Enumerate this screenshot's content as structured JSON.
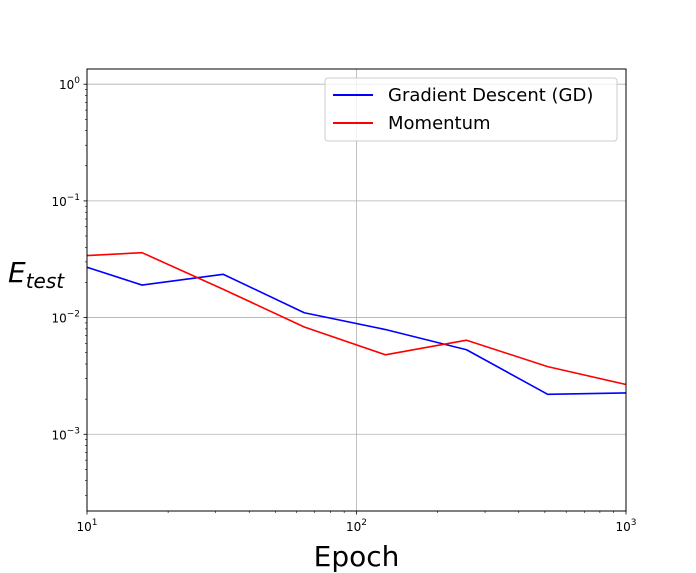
{
  "chart_data": {
    "type": "line",
    "title": "",
    "xlabel": "Epoch",
    "ylabel_base": "E",
    "ylabel_sub": "test",
    "xscale": "log",
    "yscale": "log",
    "xlim": [
      10,
      1000
    ],
    "ylim": [
      0.00022,
      1.35
    ],
    "grid": "major",
    "legend_position": "upper right",
    "x_ticks": [
      {
        "value": 10,
        "base": "10",
        "exp": "1"
      },
      {
        "value": 100,
        "base": "10",
        "exp": "2"
      },
      {
        "value": 1000,
        "base": "10",
        "exp": "3"
      }
    ],
    "y_ticks": [
      {
        "value": 0.001,
        "base": "10",
        "exp": "−3"
      },
      {
        "value": 0.01,
        "base": "10",
        "exp": "−2"
      },
      {
        "value": 0.1,
        "base": "10",
        "exp": "−1"
      },
      {
        "value": 1,
        "base": "10",
        "exp": "0"
      }
    ],
    "series": [
      {
        "name": "Gradient Descent (GD)",
        "color": "#0000ff",
        "x": [
          10,
          16,
          32,
          64,
          128,
          256,
          512,
          1000
        ],
        "y": [
          0.027,
          0.019,
          0.0235,
          0.011,
          0.0079,
          0.0053,
          0.0022,
          0.00226
        ]
      },
      {
        "name": "Momentum",
        "color": "#ff0000",
        "x": [
          10,
          16,
          32,
          64,
          128,
          256,
          512,
          1000
        ],
        "y": [
          0.034,
          0.036,
          0.0175,
          0.0083,
          0.0048,
          0.0064,
          0.0038,
          0.00267
        ]
      }
    ]
  }
}
